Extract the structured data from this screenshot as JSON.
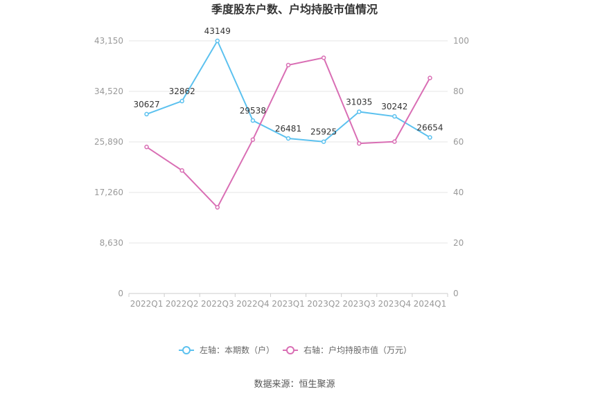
{
  "chart_data": {
    "type": "line",
    "title": "季度股东户数、户均持股市值情况",
    "categories": [
      "2022Q1",
      "2022Q2",
      "2022Q3",
      "2022Q4",
      "2023Q1",
      "2023Q2",
      "2023Q3",
      "2023Q4",
      "2024Q1"
    ],
    "left_axis": {
      "ticks": [
        "0",
        "8,630",
        "17,260",
        "25,890",
        "34,520",
        "43,150"
      ],
      "ylim": [
        0,
        43150
      ]
    },
    "right_axis": {
      "ticks": [
        "0",
        "20",
        "40",
        "60",
        "80",
        "100"
      ],
      "ylim": [
        0,
        100
      ]
    },
    "series": [
      {
        "name": "左轴：本期数（户）",
        "axis": "left",
        "color": "#5bc1ef",
        "values": [
          30627,
          32862,
          43149,
          29538,
          26481,
          25925,
          31035,
          30242,
          26654
        ],
        "labels": [
          "30627",
          "32862",
          "43149",
          "29538",
          "26481",
          "25925",
          "31035",
          "30242",
          "26654"
        ]
      },
      {
        "name": "右轴：户均持股市值（万元）",
        "axis": "right",
        "color": "#d96eb4",
        "values": [
          58.0,
          48.7,
          34.1,
          60.9,
          90.4,
          93.3,
          59.4,
          60.1,
          85.3
        ]
      }
    ],
    "grid": true,
    "legend_position": "bottom"
  },
  "source": "数据来源：恒生聚源"
}
